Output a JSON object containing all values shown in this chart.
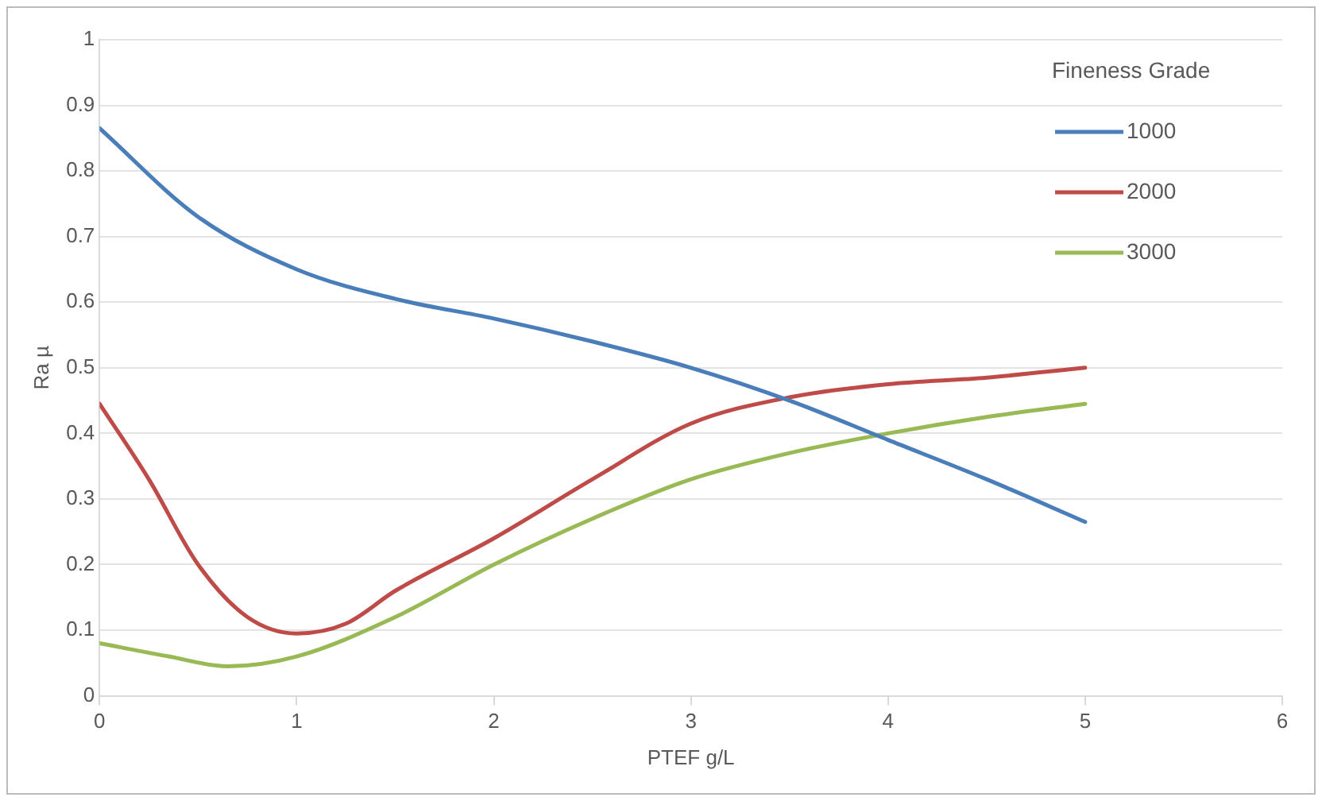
{
  "chart_data": {
    "type": "line",
    "xlabel": "PTEF g/L",
    "ylabel": "Ra µ",
    "legend_title": "Fineness Grade",
    "legend": "top right",
    "grid": "y",
    "marker": "none",
    "line_style": "solid",
    "xlim": [
      0,
      6
    ],
    "xticks": [
      0,
      1,
      2,
      3,
      4,
      5,
      6
    ],
    "ylim": [
      0,
      1
    ],
    "yticks": [
      0,
      0.1,
      0.2,
      0.3,
      0.4,
      0.5,
      0.6,
      0.7,
      0.8,
      0.9,
      1
    ],
    "series": [
      {
        "name": "1000",
        "color": "#4a7ebb",
        "x": [
          0,
          0.5,
          1,
          1.5,
          2,
          2.5,
          3,
          3.5,
          4,
          4.5,
          5
        ],
        "values": [
          0.865,
          0.73,
          0.65,
          0.605,
          0.575,
          0.54,
          0.5,
          0.45,
          0.39,
          0.33,
          0.265
        ]
      },
      {
        "name": "2000",
        "color": "#be4b48",
        "x": [
          0,
          0.25,
          0.5,
          0.75,
          1,
          1.25,
          1.5,
          2,
          2.5,
          3,
          3.5,
          4,
          4.5,
          5
        ],
        "values": [
          0.445,
          0.33,
          0.2,
          0.12,
          0.095,
          0.11,
          0.16,
          0.24,
          0.33,
          0.415,
          0.455,
          0.475,
          0.485,
          0.5
        ]
      },
      {
        "name": "3000",
        "color": "#98b954",
        "x": [
          0,
          0.35,
          0.65,
          1,
          1.5,
          2,
          2.5,
          3,
          3.5,
          4,
          4.5,
          5
        ],
        "values": [
          0.08,
          0.06,
          0.045,
          0.06,
          0.12,
          0.2,
          0.27,
          0.33,
          0.37,
          0.4,
          0.425,
          0.445
        ]
      }
    ]
  }
}
